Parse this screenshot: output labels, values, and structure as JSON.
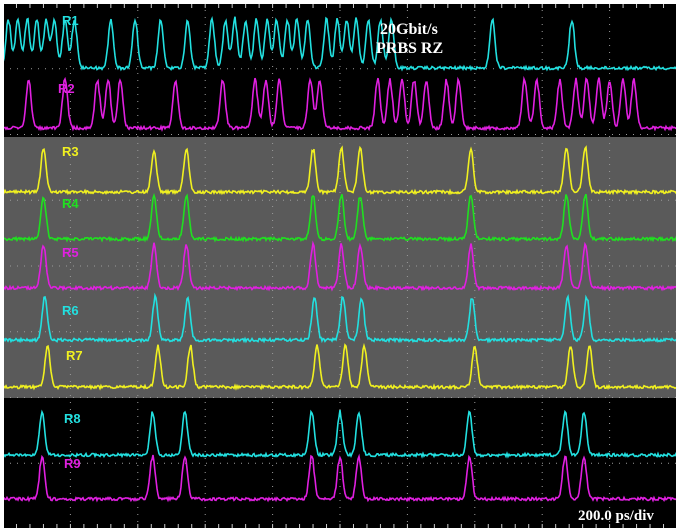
{
  "chart_data": {
    "type": "line",
    "title": "",
    "annotation_lines": [
      "20Gbit/s",
      "PRBS RZ"
    ],
    "timebase_label": "200.0 ps/div",
    "divisions": {
      "x": 10,
      "y": 8
    },
    "x_range_div": [
      0,
      10
    ],
    "pulse_width_div": 0.09,
    "grid": true,
    "series": [
      {
        "name": "R1",
        "color": "#22e0e0",
        "pulses": [
          0.08,
          0.22,
          0.36,
          0.5,
          0.64,
          0.76,
          0.92,
          1.06,
          1.6,
          1.96,
          2.34,
          2.74,
          3.1,
          3.3,
          3.44,
          3.6,
          3.76,
          3.92,
          4.06,
          4.22,
          4.36,
          4.52,
          4.8,
          4.96,
          5.1,
          5.24,
          5.42,
          5.6,
          5.76,
          7.26,
          8.44
        ]
      },
      {
        "name": "R2",
        "color": "#e020e0",
        "pulses": [
          0.38,
          0.92,
          1.4,
          1.56,
          1.74,
          2.56,
          3.26,
          3.74,
          3.9,
          4.1,
          4.56,
          4.7,
          5.56,
          5.74,
          5.92,
          6.1,
          6.28,
          6.58,
          6.76,
          7.74,
          7.92,
          8.26,
          8.5,
          8.66,
          8.84,
          9.0,
          9.2,
          9.36
        ]
      },
      {
        "name": "R3",
        "color": "#f0f020",
        "pulses": [
          0.6,
          2.24,
          2.72,
          4.6,
          5.02,
          5.3,
          6.94,
          8.36,
          8.64
        ]
      },
      {
        "name": "R4",
        "color": "#20e020",
        "pulses": [
          0.6,
          2.24,
          2.72,
          4.6,
          5.02,
          5.3,
          6.94,
          8.36,
          8.64
        ]
      },
      {
        "name": "R5",
        "color": "#e020e0",
        "pulses": [
          0.6,
          2.24,
          2.72,
          4.6,
          5.02,
          5.3,
          6.94,
          8.36,
          8.64
        ]
      },
      {
        "name": "R6",
        "color": "#22e0e0",
        "pulses": [
          0.62,
          2.26,
          2.74,
          4.62,
          5.04,
          5.32,
          6.96,
          8.38,
          8.66
        ]
      },
      {
        "name": "R7",
        "color": "#f0f020",
        "pulses": [
          0.66,
          2.3,
          2.78,
          4.66,
          5.08,
          5.36,
          7.0,
          8.42,
          8.7
        ]
      },
      {
        "name": "R8",
        "color": "#22e0e0",
        "pulses": [
          0.58,
          2.22,
          2.7,
          4.58,
          5.0,
          5.28,
          6.92,
          8.34,
          8.62
        ]
      },
      {
        "name": "R9",
        "color": "#e020e0",
        "pulses": [
          0.58,
          2.22,
          2.7,
          4.58,
          5.0,
          5.28,
          6.92,
          8.34,
          8.62
        ]
      }
    ],
    "colors": {
      "screen": "#000000",
      "shaded_band": "#5a5a5a",
      "grid": "#9a9a9a",
      "frame": "#ffffff"
    }
  }
}
